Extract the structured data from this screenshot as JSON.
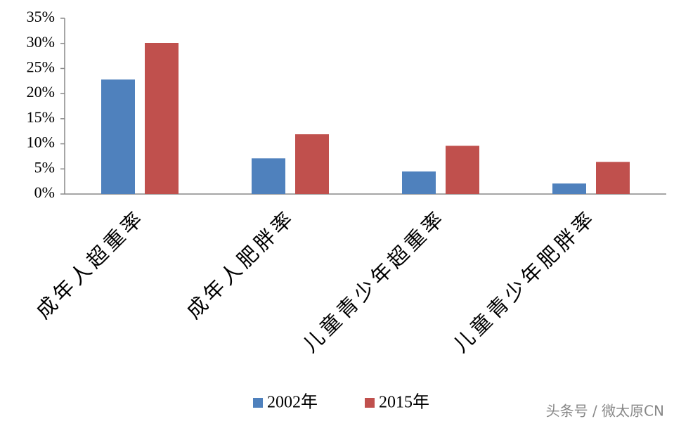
{
  "chart_data": {
    "type": "bar",
    "categories": [
      "成年人超重率",
      "成年人肥胖率",
      "儿童青少年超重率",
      "儿童青少年肥胖率"
    ],
    "series": [
      {
        "name": "2002年",
        "color": "#4f81bd",
        "values": [
          22.8,
          7.1,
          4.5,
          2.1
        ]
      },
      {
        "name": "2015年",
        "color": "#c0504d",
        "values": [
          30.1,
          11.9,
          9.6,
          6.4
        ]
      }
    ],
    "ylim": [
      0,
      35
    ],
    "yticks": [
      {
        "value": 0,
        "label": "0%"
      },
      {
        "value": 5,
        "label": "5%"
      },
      {
        "value": 10,
        "label": "10%"
      },
      {
        "value": 15,
        "label": "15%"
      },
      {
        "value": 20,
        "label": "20%"
      },
      {
        "value": 25,
        "label": "25%"
      },
      {
        "value": 30,
        "label": "30%"
      },
      {
        "value": 35,
        "label": "35%"
      }
    ],
    "grid": false,
    "watermark": "头条号 / 微太原CN"
  }
}
